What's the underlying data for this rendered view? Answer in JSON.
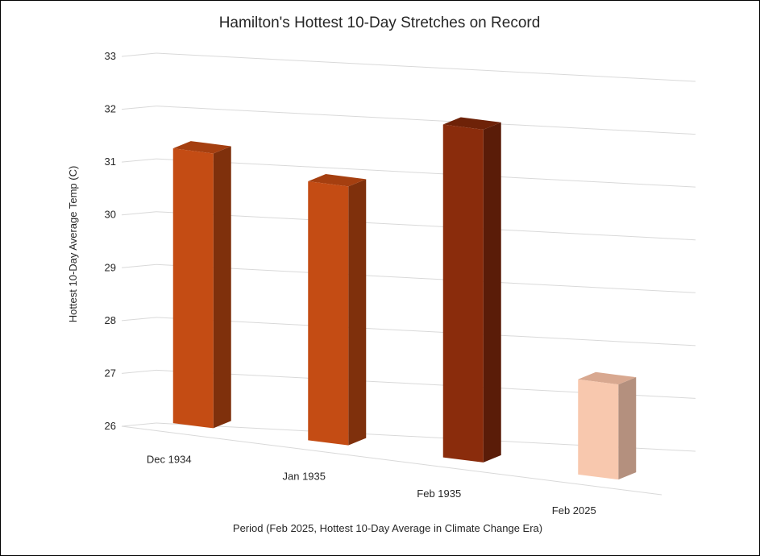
{
  "chart_data": {
    "type": "bar",
    "title": "Hamilton's Hottest 10-Day Stretches on Record",
    "xlabel": "Period (Feb 2025, Hottest 10-Day Average in Climate  Change Era)",
    "ylabel": "Hottest 10-Day Average Temp (C)",
    "ylim": [
      26,
      33
    ],
    "yticks": [
      "26",
      "27",
      "28",
      "29",
      "30",
      "31",
      "32",
      "33"
    ],
    "categories": [
      "Dec 1934",
      "Jan 1935",
      "Feb 1935",
      "Feb 2025"
    ],
    "values": [
      31.2,
      30.9,
      32.3,
      27.8
    ],
    "grid": true,
    "legend": "none",
    "bar_colors": [
      "#c44c14",
      "#c44c14",
      "#8a2c0c",
      "#f8c8ae"
    ],
    "side_colors": [
      "#7f300c",
      "#7f300c",
      "#5a1c08",
      "#b4907e"
    ],
    "top_colors": [
      "#a53f10",
      "#a53f10",
      "#6e2208",
      "#d8a890"
    ],
    "grid_color": "#d9d9d9"
  }
}
